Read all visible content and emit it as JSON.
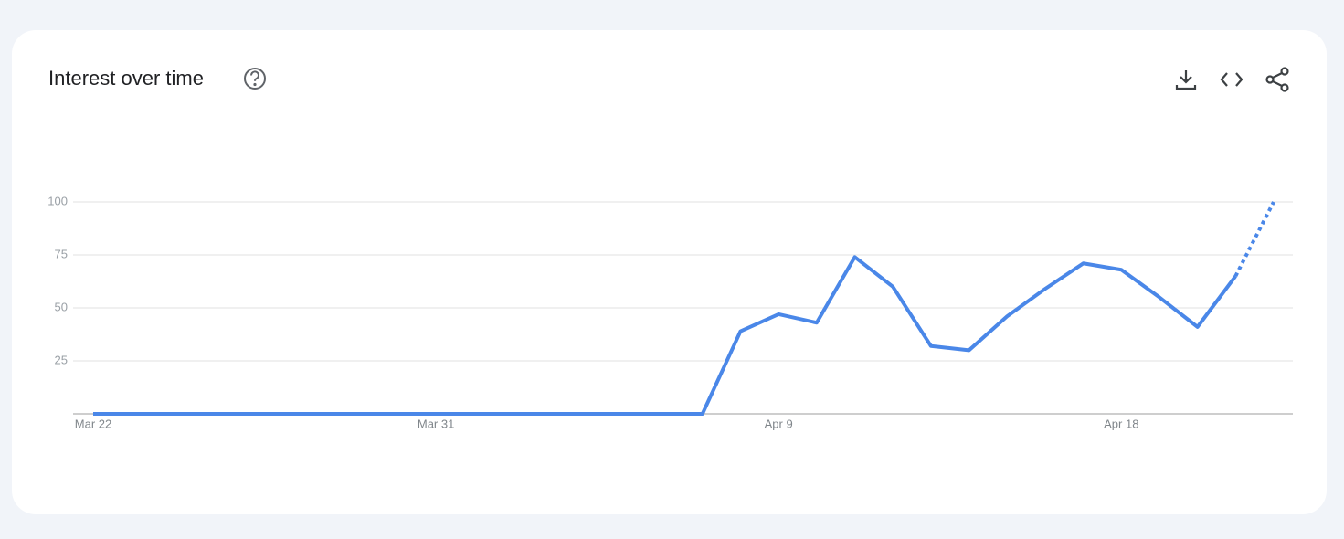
{
  "chart_data": {
    "type": "line",
    "title": "Interest over time",
    "categories": [
      "Mar 22",
      null,
      null,
      null,
      null,
      null,
      null,
      null,
      null,
      "Mar 31",
      null,
      null,
      null,
      null,
      null,
      null,
      null,
      null,
      "Apr 9",
      null,
      null,
      null,
      null,
      null,
      null,
      null,
      null,
      "Apr 18",
      null,
      null,
      null,
      null
    ],
    "series": [
      {
        "color": "#4a87e8",
        "values": [
          0,
          0,
          0,
          0,
          0,
          0,
          0,
          0,
          0,
          0,
          0,
          0,
          0,
          0,
          0,
          0,
          0,
          39,
          47,
          43,
          74,
          60,
          32,
          30,
          46,
          59,
          71,
          68,
          55,
          41,
          65,
          100
        ]
      }
    ],
    "ylim": [
      0,
      100
    ],
    "yticks": [
      25,
      50,
      75,
      100
    ],
    "grid": true
  }
}
